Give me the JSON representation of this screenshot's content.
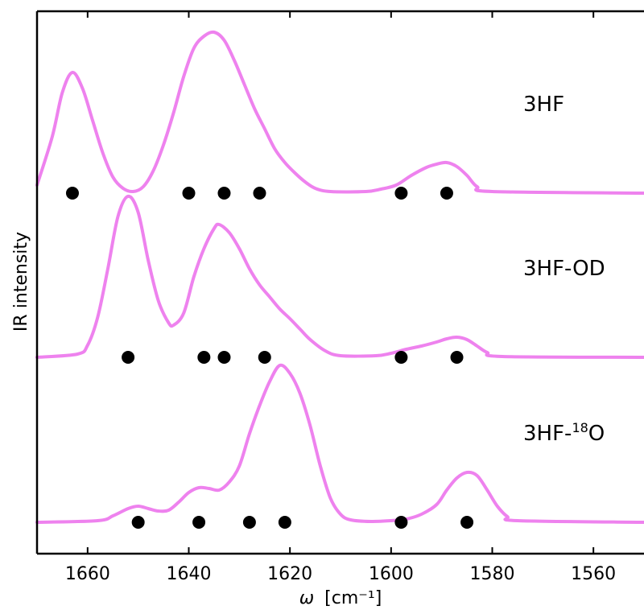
{
  "chart_data": {
    "type": "line",
    "xlabel_symbol": "ω",
    "xlabel_units": "[cm⁻¹]",
    "ylabel": "IR intensity",
    "xlim": [
      1670,
      1550
    ],
    "x_ticks": [
      1660,
      1640,
      1620,
      1600,
      1580,
      1560
    ],
    "legend": "none",
    "line_color": "#ee82ee",
    "marker_color": "#000000",
    "series": [
      {
        "name": "3HF",
        "baseline": 0,
        "points": [
          [
            1670,
            10
          ],
          [
            1667,
            70
          ],
          [
            1665,
            125
          ],
          [
            1663,
            150
          ],
          [
            1661,
            130
          ],
          [
            1659,
            90
          ],
          [
            1657,
            50
          ],
          [
            1655,
            20
          ],
          [
            1653,
            6
          ],
          [
            1651,
            2
          ],
          [
            1649,
            8
          ],
          [
            1647,
            28
          ],
          [
            1645,
            60
          ],
          [
            1643,
            100
          ],
          [
            1641,
            145
          ],
          [
            1639,
            180
          ],
          [
            1637,
            195
          ],
          [
            1635,
            200
          ],
          [
            1633,
            190
          ],
          [
            1631,
            165
          ],
          [
            1629,
            135
          ],
          [
            1627,
            105
          ],
          [
            1625,
            80
          ],
          [
            1623,
            55
          ],
          [
            1621,
            38
          ],
          [
            1619,
            25
          ],
          [
            1617,
            14
          ],
          [
            1615,
            6
          ],
          [
            1612,
            2
          ],
          [
            1605,
            2
          ],
          [
            1602,
            5
          ],
          [
            1599,
            10
          ],
          [
            1596,
            22
          ],
          [
            1593,
            32
          ],
          [
            1591,
            36
          ],
          [
            1589,
            38
          ],
          [
            1587,
            33
          ],
          [
            1585,
            22
          ],
          [
            1583,
            8
          ],
          [
            1580,
            2
          ],
          [
            1550,
            0
          ]
        ],
        "marker_x": [
          1663,
          1640,
          1633,
          1626,
          1598,
          1589
        ]
      },
      {
        "name": "3HF-OD",
        "baseline": 0,
        "points": [
          [
            1670,
            0
          ],
          [
            1662,
            4
          ],
          [
            1660,
            15
          ],
          [
            1658,
            50
          ],
          [
            1656,
            110
          ],
          [
            1654,
            175
          ],
          [
            1652,
            200
          ],
          [
            1650,
            180
          ],
          [
            1648,
            120
          ],
          [
            1646,
            70
          ],
          [
            1644,
            43
          ],
          [
            1643,
            40
          ],
          [
            1641,
            55
          ],
          [
            1639,
            100
          ],
          [
            1637,
            135
          ],
          [
            1635,
            160
          ],
          [
            1634,
            165
          ],
          [
            1632,
            155
          ],
          [
            1630,
            135
          ],
          [
            1628,
            110
          ],
          [
            1626,
            90
          ],
          [
            1624,
            75
          ],
          [
            1622,
            60
          ],
          [
            1620,
            48
          ],
          [
            1618,
            35
          ],
          [
            1616,
            22
          ],
          [
            1613,
            8
          ],
          [
            1610,
            2
          ],
          [
            1603,
            2
          ],
          [
            1600,
            5
          ],
          [
            1597,
            10
          ],
          [
            1594,
            14
          ],
          [
            1591,
            19
          ],
          [
            1589,
            23
          ],
          [
            1587,
            25
          ],
          [
            1585,
            22
          ],
          [
            1583,
            14
          ],
          [
            1581,
            6
          ],
          [
            1578,
            1
          ],
          [
            1550,
            0
          ]
        ],
        "marker_x": [
          1652,
          1637,
          1633,
          1625,
          1598,
          1587
        ]
      },
      {
        "name": "3HF-",
        "name_sup": "18",
        "name_tail": "O",
        "baseline": 0,
        "points": [
          [
            1670,
            0
          ],
          [
            1658,
            2
          ],
          [
            1655,
            8
          ],
          [
            1652,
            17
          ],
          [
            1650,
            20
          ],
          [
            1648,
            17
          ],
          [
            1646,
            14
          ],
          [
            1644,
            15
          ],
          [
            1642,
            25
          ],
          [
            1640,
            37
          ],
          [
            1638,
            43
          ],
          [
            1636,
            42
          ],
          [
            1634,
            40
          ],
          [
            1632,
            50
          ],
          [
            1630,
            70
          ],
          [
            1628,
            110
          ],
          [
            1626,
            145
          ],
          [
            1624,
            175
          ],
          [
            1622,
            195
          ],
          [
            1620,
            185
          ],
          [
            1618,
            160
          ],
          [
            1616,
            120
          ],
          [
            1614,
            70
          ],
          [
            1612,
            30
          ],
          [
            1610,
            10
          ],
          [
            1608,
            3
          ],
          [
            1604,
            1
          ],
          [
            1600,
            2
          ],
          [
            1597,
            4
          ],
          [
            1594,
            10
          ],
          [
            1591,
            22
          ],
          [
            1589,
            40
          ],
          [
            1587,
            55
          ],
          [
            1585,
            62
          ],
          [
            1583,
            58
          ],
          [
            1581,
            40
          ],
          [
            1579,
            20
          ],
          [
            1577,
            7
          ],
          [
            1575,
            2
          ],
          [
            1550,
            0
          ]
        ],
        "marker_x": [
          1650,
          1638,
          1628,
          1621,
          1598,
          1585
        ]
      }
    ]
  }
}
